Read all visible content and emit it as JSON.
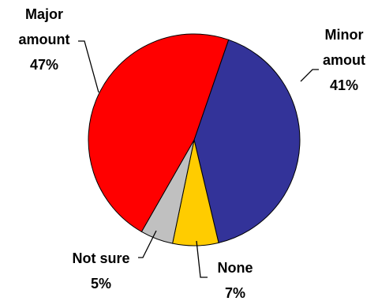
{
  "chart_data": {
    "type": "pie",
    "slices": [
      {
        "label_lines": [
          "Minor",
          "amout"
        ],
        "value": 41,
        "value_text": "41%",
        "color": "#333399"
      },
      {
        "label_lines": [
          "None"
        ],
        "value": 7,
        "value_text": "7%",
        "color": "#FFCC00"
      },
      {
        "label_lines": [
          "Not sure"
        ],
        "value": 5,
        "value_text": "5%",
        "color": "#C0C0C0"
      },
      {
        "label_lines": [
          "Major",
          "amount"
        ],
        "value": 47,
        "value_text": "47%",
        "color": "#FF0000"
      }
    ],
    "start_angle_deg": 19,
    "direction": "clockwise",
    "legend": "none",
    "labels": "outside-with-leader-lines"
  }
}
